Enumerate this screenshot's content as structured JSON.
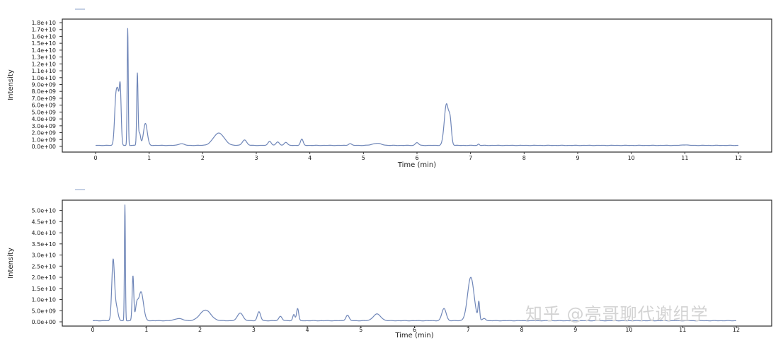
{
  "chart_data": [
    {
      "type": "line",
      "xlabel": "Time (min)",
      "ylabel": "Intensity",
      "legend": "",
      "xlim": [
        0,
        12
      ],
      "ylim": [
        0,
        18000000000
      ],
      "x_ticks": [
        "0",
        "1",
        "2",
        "3",
        "4",
        "5",
        "6",
        "7",
        "8",
        "9",
        "10",
        "11",
        "12"
      ],
      "y_ticks": [
        "0.0e+00",
        "1.0e+09",
        "2.0e+09",
        "3.0e+09",
        "4.0e+09",
        "5.0e+09",
        "6.0e+09",
        "7.0e+09",
        "8.0e+09",
        "9.0e+09",
        "1.0e+10",
        "1.1e+10",
        "1.2e+10",
        "1.3e+10",
        "1.4e+10",
        "1.5e+10",
        "1.6e+10",
        "1.7e+10",
        "1.8e+10"
      ],
      "baseline": 150000000,
      "peaks": [
        {
          "t": 0.38,
          "h": 7000000000.0,
          "w": 0.025
        },
        {
          "t": 0.42,
          "h": 5500000000.0,
          "w": 0.02
        },
        {
          "t": 0.46,
          "h": 8300000000.0,
          "w": 0.018
        },
        {
          "t": 0.6,
          "h": 17000000000.0,
          "w": 0.01
        },
        {
          "t": 0.78,
          "h": 10300000000.0,
          "w": 0.012
        },
        {
          "t": 0.82,
          "h": 1800000000.0,
          "w": 0.02
        },
        {
          "t": 0.93,
          "h": 3200000000.0,
          "w": 0.035
        },
        {
          "t": 1.6,
          "h": 250000000.0,
          "w": 0.05
        },
        {
          "t": 2.3,
          "h": 1800000000.0,
          "w": 0.1
        },
        {
          "t": 2.78,
          "h": 800000000.0,
          "w": 0.04
        },
        {
          "t": 3.25,
          "h": 600000000.0,
          "w": 0.03
        },
        {
          "t": 3.4,
          "h": 500000000.0,
          "w": 0.03
        },
        {
          "t": 3.55,
          "h": 450000000.0,
          "w": 0.03
        },
        {
          "t": 3.85,
          "h": 900000000.0,
          "w": 0.025
        },
        {
          "t": 4.75,
          "h": 250000000.0,
          "w": 0.03
        },
        {
          "t": 5.25,
          "h": 300000000.0,
          "w": 0.08
        },
        {
          "t": 6.0,
          "h": 400000000.0,
          "w": 0.03
        },
        {
          "t": 6.55,
          "h": 6000000000.0,
          "w": 0.04
        },
        {
          "t": 6.62,
          "h": 3000000000.0,
          "w": 0.025
        },
        {
          "t": 7.15,
          "h": 200000000.0,
          "w": 0.015
        },
        {
          "t": 11.0,
          "h": 80000000.0,
          "w": 0.05
        }
      ]
    },
    {
      "type": "line",
      "xlabel": "Time (min)",
      "ylabel": "Intensity",
      "legend": "",
      "xlim": [
        0,
        12
      ],
      "ylim": [
        0,
        54000000000
      ],
      "x_ticks": [
        "0",
        "1",
        "2",
        "3",
        "4",
        "5",
        "6",
        "7",
        "8",
        "9",
        "10",
        "11",
        "12"
      ],
      "y_ticks": [
        "0.0e+00",
        "5.0e+09",
        "1.0e+10",
        "1.5e+10",
        "2.0e+10",
        "2.5e+10",
        "3.0e+10",
        "3.5e+10",
        "4.0e+10",
        "4.5e+10",
        "5.0e+10"
      ],
      "baseline": 500000000,
      "peaks": [
        {
          "t": 0.38,
          "h": 27000000000.0,
          "w": 0.025
        },
        {
          "t": 0.44,
          "h": 6000000000.0,
          "w": 0.03
        },
        {
          "t": 0.6,
          "h": 52000000000.0,
          "w": 0.009
        },
        {
          "t": 0.75,
          "h": 20000000000.0,
          "w": 0.015
        },
        {
          "t": 0.82,
          "h": 6000000000.0,
          "w": 0.025
        },
        {
          "t": 0.9,
          "h": 13000000000.0,
          "w": 0.045
        },
        {
          "t": 1.6,
          "h": 1000000000.0,
          "w": 0.07
        },
        {
          "t": 2.1,
          "h": 4800000000.0,
          "w": 0.1
        },
        {
          "t": 2.75,
          "h": 3500000000.0,
          "w": 0.05
        },
        {
          "t": 3.1,
          "h": 4000000000.0,
          "w": 0.03
        },
        {
          "t": 3.5,
          "h": 2000000000.0,
          "w": 0.03
        },
        {
          "t": 3.75,
          "h": 2800000000.0,
          "w": 0.02
        },
        {
          "t": 3.82,
          "h": 5500000000.0,
          "w": 0.02
        },
        {
          "t": 4.75,
          "h": 2500000000.0,
          "w": 0.03
        },
        {
          "t": 5.3,
          "h": 3000000000.0,
          "w": 0.07
        },
        {
          "t": 6.55,
          "h": 5500000000.0,
          "w": 0.04
        },
        {
          "t": 7.05,
          "h": 19500000000.0,
          "w": 0.06
        },
        {
          "t": 7.2,
          "h": 8000000000.0,
          "w": 0.015
        },
        {
          "t": 7.3,
          "h": 1000000000.0,
          "w": 0.03
        }
      ]
    }
  ]
}
